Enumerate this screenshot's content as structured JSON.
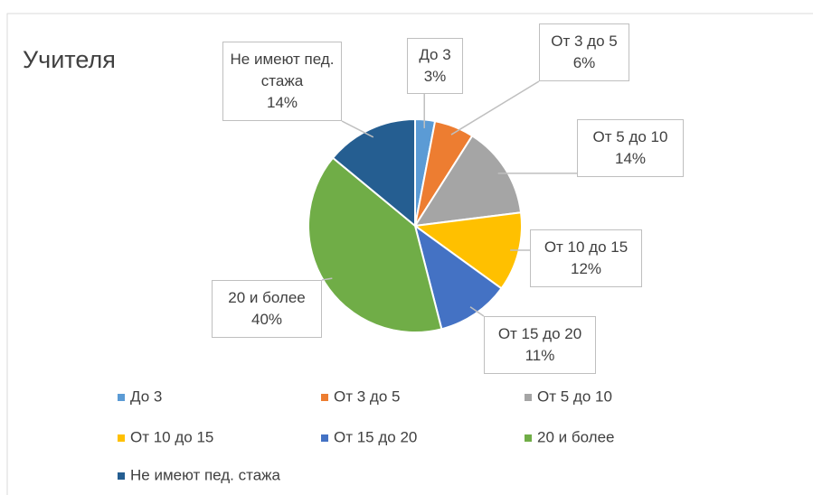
{
  "chart_data": {
    "type": "pie",
    "title": "Учителя",
    "categories": [
      "До 3",
      "От 3 до 5",
      "От 5 до 10",
      "От 10 до 15",
      "От 15 до 20",
      "20 и более",
      "Не имеют пед. стажа"
    ],
    "values": [
      3,
      6,
      14,
      12,
      11,
      40,
      14
    ],
    "value_labels": [
      "3%",
      "6%",
      "14%",
      "12%",
      "11%",
      "40%",
      "14%"
    ],
    "colors": [
      "#5b9bd5",
      "#ed7d31",
      "#a5a5a5",
      "#ffc000",
      "#4472c4",
      "#70ad47",
      "#255e91"
    ],
    "legend": "bottom"
  }
}
